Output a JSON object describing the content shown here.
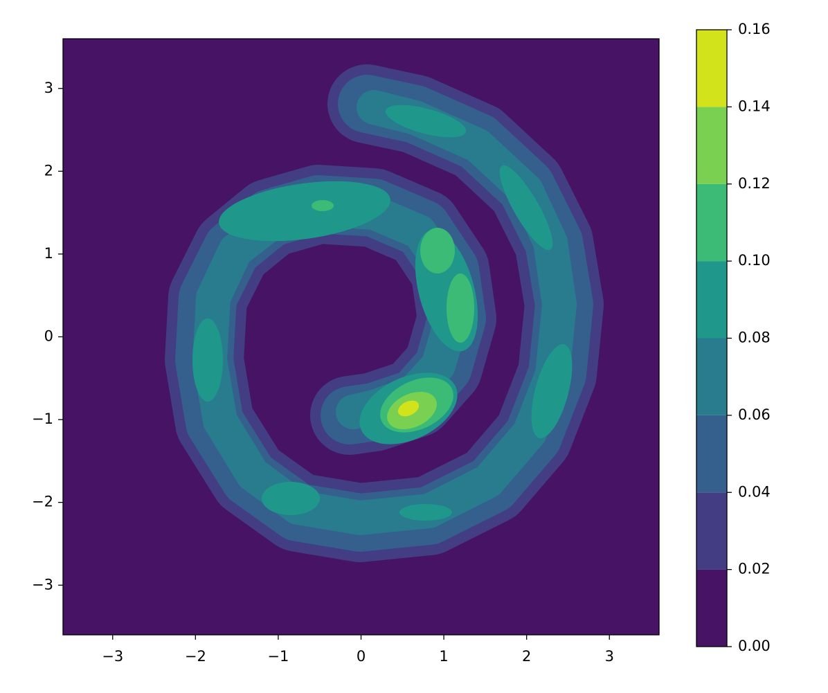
{
  "chart_data": {
    "type": "contourf",
    "xlim": [
      -3.6,
      3.6
    ],
    "ylim": [
      -3.6,
      3.6
    ],
    "xticks": [
      {
        "value": -3,
        "label": "−3"
      },
      {
        "value": -2,
        "label": "−2"
      },
      {
        "value": -1,
        "label": "−1"
      },
      0,
      1,
      2,
      3
    ],
    "yticks": [
      {
        "value": -3,
        "label": "−3"
      },
      {
        "value": -2,
        "label": "−2"
      },
      {
        "value": -1,
        "label": "−1"
      },
      0,
      1,
      2,
      3
    ],
    "levels": [
      {
        "value": 0,
        "label": "0.00"
      },
      0.02,
      0.04,
      0.06,
      0.08,
      {
        "value": 0.1,
        "label": "0.10"
      },
      0.12,
      0.14,
      0.16
    ],
    "colors": [
      "#471365",
      "#433d84",
      "#355f8d",
      "#297b8e",
      "#1f988b",
      "#3bbb75",
      "#7ad151",
      "#d2e21b"
    ]
  }
}
